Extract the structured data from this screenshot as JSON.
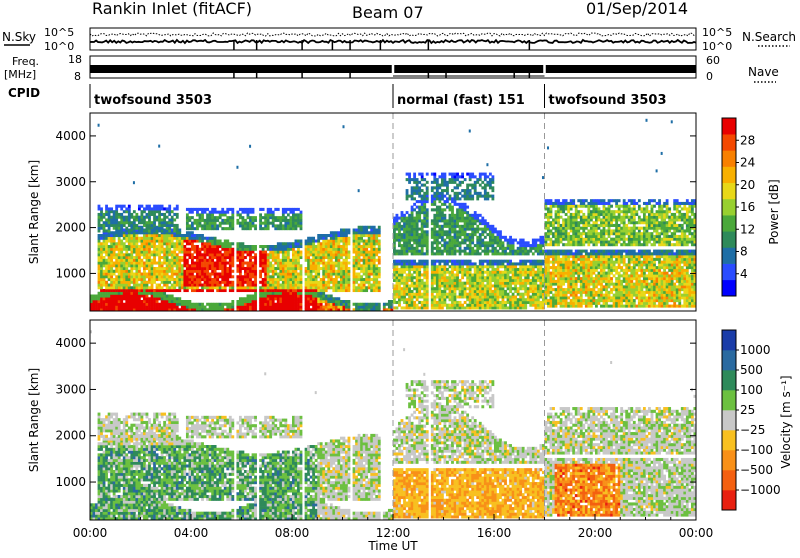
{
  "header": {
    "station": "Rankin Inlet (fitACF)",
    "beam": "Beam 07",
    "date": "01/Sep/2014"
  },
  "strips": {
    "nsky_label": "N.Sky",
    "nsearch_label": "N.Search",
    "nsky_ticks": [
      "10^5",
      "10^0"
    ],
    "nsearch_ticks": [
      "10^5",
      "10^0"
    ],
    "freq_label_line1": "Freq.",
    "freq_label_line2": "[MHz]",
    "freq_ticks": [
      "18",
      "8"
    ],
    "nave_label": "Nave",
    "nave_ticks": [
      "60",
      "0"
    ],
    "cpid_label": "CPID",
    "modes": [
      {
        "start_hour": 0,
        "text": "twofsound 3503"
      },
      {
        "start_hour": 12,
        "text": "normal (fast) 151"
      },
      {
        "start_hour": 18,
        "text": "twofsound 3503"
      }
    ]
  },
  "chart_data": [
    {
      "type": "heatmap",
      "name": "power",
      "ylabel": "Slant Range [km]",
      "xlabel": "",
      "xlim": [
        0,
        24
      ],
      "ylim": [
        180,
        4500
      ],
      "yticks": [
        "1000",
        "2000",
        "3000",
        "4000"
      ],
      "colorbar": {
        "label": "Power [dB]",
        "range": [
          0,
          32
        ],
        "ticks": [
          "4",
          "8",
          "12",
          "16",
          "20",
          "24",
          "28"
        ],
        "colors": [
          "#0000ff",
          "#2a4cff",
          "#1e6ea6",
          "#2e8a5a",
          "#4aa83a",
          "#98d030",
          "#e8d818",
          "#f8b000",
          "#f88000",
          "#f44800",
          "#e80000"
        ]
      }
    },
    {
      "type": "heatmap",
      "name": "velocity",
      "ylabel": "Slant Range [km]",
      "xlabel": "Time UT",
      "xlim": [
        0,
        24
      ],
      "ylim": [
        180,
        4500
      ],
      "yticks": [
        "1000",
        "2000",
        "3000",
        "4000"
      ],
      "xticks": [
        "00:00",
        "04:00",
        "08:00",
        "12:00",
        "16:00",
        "20:00",
        "00:00"
      ],
      "colorbar": {
        "label": "Velocity [m s⁻¹]",
        "ticks": [
          "1000",
          "500",
          "100",
          "25",
          "−25",
          "−100",
          "−500",
          "−1000"
        ],
        "colors": [
          "#1a3ca8",
          "#2a6aa0",
          "#2e8a5a",
          "#6cc040",
          "#c8c8c8",
          "#f8c020",
          "#f89018",
          "#f46010",
          "#e82010"
        ]
      }
    }
  ]
}
